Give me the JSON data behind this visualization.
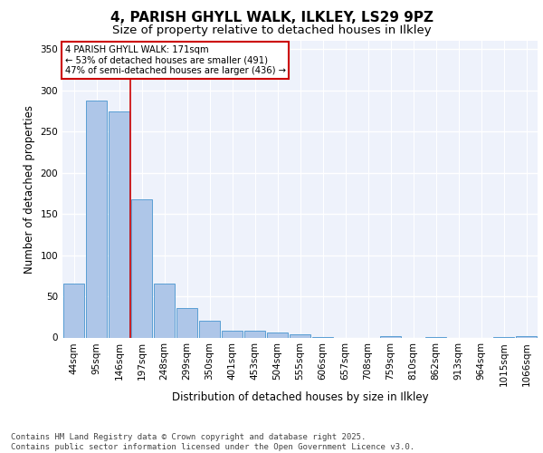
{
  "title1": "4, PARISH GHYLL WALK, ILKLEY, LS29 9PZ",
  "title2": "Size of property relative to detached houses in Ilkley",
  "xlabel": "Distribution of detached houses by size in Ilkley",
  "ylabel": "Number of detached properties",
  "categories": [
    "44sqm",
    "95sqm",
    "146sqm",
    "197sqm",
    "248sqm",
    "299sqm",
    "350sqm",
    "401sqm",
    "453sqm",
    "504sqm",
    "555sqm",
    "606sqm",
    "657sqm",
    "708sqm",
    "759sqm",
    "810sqm",
    "862sqm",
    "913sqm",
    "964sqm",
    "1015sqm",
    "1066sqm"
  ],
  "values": [
    65,
    287,
    274,
    168,
    65,
    36,
    20,
    8,
    8,
    6,
    4,
    1,
    0,
    0,
    2,
    0,
    1,
    0,
    0,
    1,
    2
  ],
  "bar_color": "#aec6e8",
  "bar_edgecolor": "#5a9fd4",
  "background_color": "#eef2fb",
  "grid_color": "#ffffff",
  "red_line_x": 2.5,
  "annotation_text": "4 PARISH GHYLL WALK: 171sqm\n← 53% of detached houses are smaller (491)\n47% of semi-detached houses are larger (436) →",
  "annotation_box_color": "#ffffff",
  "annotation_box_edgecolor": "#cc0000",
  "ylim": [
    0,
    360
  ],
  "yticks": [
    0,
    50,
    100,
    150,
    200,
    250,
    300,
    350
  ],
  "footer": "Contains HM Land Registry data © Crown copyright and database right 2025.\nContains public sector information licensed under the Open Government Licence v3.0.",
  "title_fontsize": 11,
  "subtitle_fontsize": 9.5,
  "axis_label_fontsize": 8.5,
  "tick_fontsize": 7.5,
  "footer_fontsize": 6.5
}
